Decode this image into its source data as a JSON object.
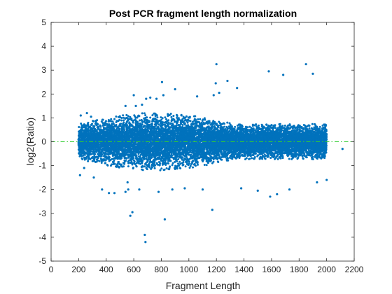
{
  "chart_data": {
    "type": "scatter",
    "title": "Post PCR fragment length normalization",
    "xlabel": "Fragment Length",
    "ylabel": "log2(Ratio)",
    "xlim": [
      0,
      2200
    ],
    "ylim": [
      -5,
      5
    ],
    "xticks": [
      0,
      200,
      400,
      600,
      800,
      1000,
      1200,
      1400,
      1600,
      1800,
      2000,
      2200
    ],
    "yticks": [
      -5,
      -4,
      -3,
      -2,
      -1,
      0,
      1,
      2,
      3,
      4,
      5
    ],
    "grid": false,
    "legend": "none",
    "reference_line": {
      "y": 0,
      "color": "#33cc33",
      "style": "dash-dot"
    },
    "marker_color": "#0072BD",
    "dense_band": {
      "x_range": [
        200,
        2000
      ],
      "typical_y_range": [
        -1,
        1
      ]
    },
    "series": [
      {
        "values": [
          [
            215,
            1.1
          ],
          [
            260,
            1.2
          ],
          [
            290,
            1.05
          ],
          [
            210,
            -1.4
          ],
          [
            240,
            -1.1
          ],
          [
            310,
            -1.5
          ],
          [
            370,
            -2.0
          ],
          [
            420,
            -2.15
          ],
          [
            460,
            -2.15
          ],
          [
            540,
            -2.1
          ],
          [
            560,
            -2.0
          ],
          [
            555,
            -1.7
          ],
          [
            575,
            -3.1
          ],
          [
            590,
            -2.95
          ],
          [
            540,
            1.5
          ],
          [
            600,
            1.95
          ],
          [
            615,
            1.5
          ],
          [
            660,
            1.55
          ],
          [
            690,
            1.8
          ],
          [
            720,
            1.85
          ],
          [
            765,
            1.8
          ],
          [
            805,
            2.5
          ],
          [
            815,
            1.95
          ],
          [
            900,
            2.2
          ],
          [
            1060,
            1.9
          ],
          [
            1180,
            1.95
          ],
          [
            1195,
            2.45
          ],
          [
            1200,
            3.25
          ],
          [
            1220,
            2.05
          ],
          [
            1280,
            2.55
          ],
          [
            1350,
            2.25
          ],
          [
            1580,
            2.95
          ],
          [
            1685,
            2.8
          ],
          [
            1850,
            3.25
          ],
          [
            1900,
            2.85
          ],
          [
            825,
            -3.25
          ],
          [
            680,
            -3.9
          ],
          [
            685,
            -4.2
          ],
          [
            1170,
            -2.85
          ],
          [
            1500,
            -2.05
          ],
          [
            1590,
            -2.3
          ],
          [
            1640,
            -2.2
          ],
          [
            1730,
            -2.0
          ],
          [
            1930,
            -1.7
          ],
          [
            2000,
            -1.6
          ],
          [
            2115,
            -0.3
          ],
          [
            880,
            -2.0
          ],
          [
            970,
            -1.95
          ],
          [
            1100,
            -2.0
          ],
          [
            1380,
            -1.95
          ],
          [
            780,
            -2.1
          ],
          [
            640,
            -2.0
          ]
        ]
      }
    ]
  }
}
